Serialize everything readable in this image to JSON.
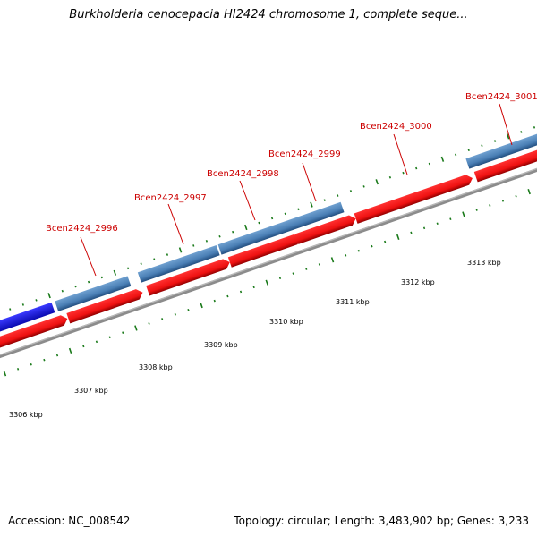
{
  "title": "Burkholderia cenocepacia HI2424 chromosome 1, complete seque...",
  "footer": {
    "accession": "Accession: NC_008542",
    "summary": "Topology: circular; Length: 3,483,902 bp; Genes: 3,233"
  },
  "gene_labels": [
    "Bcen2424_2996",
    "Bcen2424_2997",
    "Bcen2424_2998",
    "Bcen2424_2999",
    "Bcen2424_3000",
    "Bcen2424_3001"
  ],
  "kbp_labels": [
    "3306 kbp",
    "3307 kbp",
    "3308 kbp",
    "3309 kbp",
    "3310 kbp",
    "3311 kbp",
    "3312 kbp",
    "3313 kbp"
  ],
  "colors": {
    "gene_blue": "#4a7fb5",
    "gene_blue_dark": "#1a4f85",
    "gene_selected": "#1f1fe8",
    "cds_red": "#ee1111",
    "cds_red_dark": "#a00000",
    "backbone": "#8c8c8c",
    "tick_green": "#1a7a1a",
    "label_red": "#cc0000"
  }
}
